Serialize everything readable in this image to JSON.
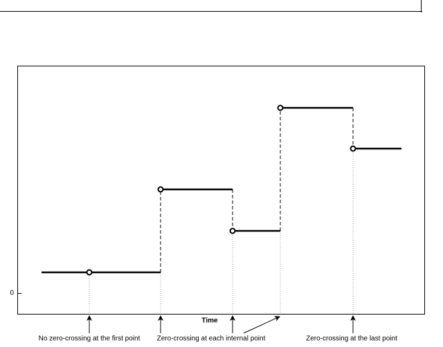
{
  "axis": {
    "y_tick": "0",
    "x_label": "Time"
  },
  "annotations": [
    "No zero-crossing at the first point",
    "Zero-crossing at each internal point",
    "Zero-crossing at the last point"
  ]
}
